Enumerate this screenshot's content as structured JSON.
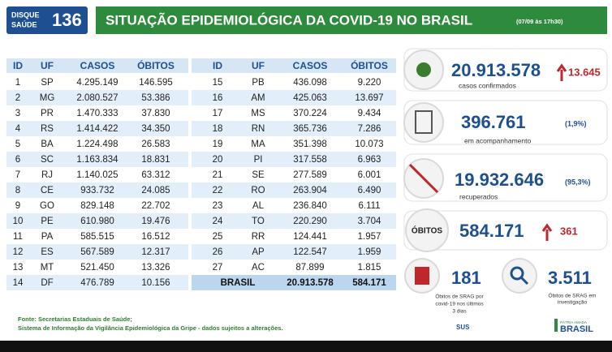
{
  "header": {
    "hotline_label": [
      "DISQUE",
      "SAÚDE"
    ],
    "hotline_number": "136",
    "title": "SITUAÇÃO EPIDEMIOLÓGICA DA COVID-19 NO BRASIL",
    "timestamp": "(07/09 às 17h30)"
  },
  "tables": [
    {
      "columns": [
        "ID",
        "UF",
        "CASOS",
        "ÓBITOS"
      ],
      "rows": [
        [
          "1",
          "SP",
          "4.295.149",
          "146.595"
        ],
        [
          "2",
          "MG",
          "2.080.527",
          "53.386"
        ],
        [
          "3",
          "PR",
          "1.470.333",
          "37.830"
        ],
        [
          "4",
          "RS",
          "1.414.422",
          "34.350"
        ],
        [
          "5",
          "BA",
          "1.224.498",
          "26.583"
        ],
        [
          "6",
          "SC",
          "1.163.834",
          "18.831"
        ],
        [
          "7",
          "RJ",
          "1.140.025",
          "63.312"
        ],
        [
          "8",
          "CE",
          "933.732",
          "24.085"
        ],
        [
          "9",
          "GO",
          "829.148",
          "22.702"
        ],
        [
          "10",
          "PE",
          "610.980",
          "19.476"
        ],
        [
          "11",
          "PA",
          "585.515",
          "16.512"
        ],
        [
          "12",
          "ES",
          "567.589",
          "12.317"
        ],
        [
          "13",
          "MT",
          "521.450",
          "13.326"
        ],
        [
          "14",
          "DF",
          "476.789",
          "10.156"
        ]
      ]
    },
    {
      "columns": [
        "ID",
        "UF",
        "CASOS",
        "ÓBITOS"
      ],
      "rows": [
        [
          "15",
          "PB",
          "436.098",
          "9.220"
        ],
        [
          "16",
          "AM",
          "425.063",
          "13.697"
        ],
        [
          "17",
          "MS",
          "370.224",
          "9.434"
        ],
        [
          "18",
          "RN",
          "365.736",
          "7.286"
        ],
        [
          "19",
          "MA",
          "351.398",
          "10.073"
        ],
        [
          "20",
          "PI",
          "317.558",
          "6.963"
        ],
        [
          "21",
          "SE",
          "277.589",
          "6.001"
        ],
        [
          "22",
          "RO",
          "263.904",
          "6.490"
        ],
        [
          "23",
          "AL",
          "236.840",
          "6.111"
        ],
        [
          "24",
          "TO",
          "220.290",
          "3.704"
        ],
        [
          "25",
          "RR",
          "124.441",
          "1.957"
        ],
        [
          "26",
          "AP",
          "122.547",
          "1.959"
        ],
        [
          "27",
          "AC",
          "87.899",
          "1.815"
        ]
      ],
      "total": [
        "BRASIL",
        "20.913.578",
        "584.171"
      ]
    }
  ],
  "summary": {
    "confirmed": {
      "value": "20.913.578",
      "change": "13.645",
      "caption": "casos confirmados"
    },
    "monitoring": {
      "value": "396.761",
      "share": "(1,9%)",
      "caption": "em acompanhamento"
    },
    "recovered": {
      "value": "19.932.646",
      "share": "(95,3%)",
      "caption": "recuperados"
    },
    "deaths": {
      "label": "ÓBITOS",
      "value": "584.171",
      "change": "361"
    },
    "srag_recent": {
      "value": "181",
      "caption": [
        "Óbitos de SRAG por",
        "covid-19 nos últimos",
        "3 dias"
      ]
    },
    "srag_investigation": {
      "value": "3.511",
      "caption": [
        "Óbitos de SRAG em",
        "investigação"
      ]
    }
  },
  "footer": {
    "lines": [
      "Fonte: Secretarias Estaduais de Saúde;",
      "Sistema de Informação da Vigilância Epidemiológica da Gripe - dados sujeitos a alterações."
    ]
  },
  "logos": {
    "sus": "SUS",
    "slogan": "PÁTRIA AMADA",
    "country": "BRASIL"
  }
}
